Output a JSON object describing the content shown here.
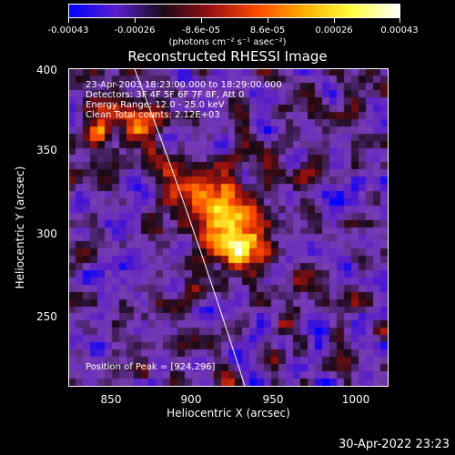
{
  "colorbar": {
    "tick_labels": [
      "-0.00043",
      "-0.00026",
      "-8.6e-05",
      "8.6e-05",
      "0.00026",
      "0.00043"
    ],
    "units": "(photons cm⁻² s⁻¹ asec⁻²)",
    "colors": [
      "#0000ff",
      "#5a1ecf",
      "#1a0a18",
      "#9a1010",
      "#ff4a00",
      "#ffb000",
      "#ffff40",
      "#ffffff"
    ]
  },
  "title": "Reconstructed RHESSI Image",
  "info": {
    "line1": "23-Apr-2003 18:23:00.000 to 18:29:00.000",
    "line2": "Detectors: 3F 4F 5F 6F 7F 8F, Att 0",
    "line3": "Energy Range: 12.0 - 25.0 keV",
    "line4": "Clean    Total counts: 2.12E+03",
    "peak": "Position of Peak = [924,296]"
  },
  "axes": {
    "xlabel": "Heliocentric X (arcsec)",
    "ylabel": "Heliocentric Y (arcsec)",
    "x_ticks": [
      "850",
      "900",
      "950",
      "1000"
    ],
    "y_ticks": [
      "400",
      "350",
      "300",
      "250"
    ],
    "xlim": [
      825,
      1015
    ],
    "ylim": [
      205,
      400
    ]
  },
  "peak_position": [
    924,
    296
  ],
  "timestamp": "30-Apr-2022 23:23"
}
